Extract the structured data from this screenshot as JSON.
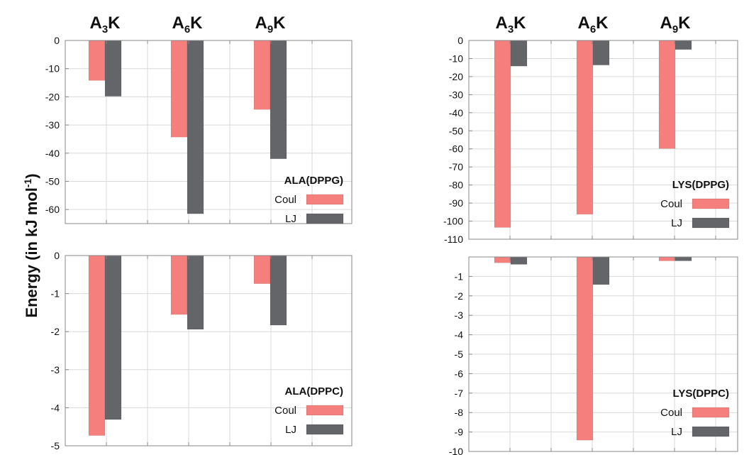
{
  "ylabel": {
    "main": "Energy (in kJ mol",
    "sup": "-1",
    "close": ")"
  },
  "colors": {
    "coul": "#f47f7c",
    "lj": "#646569",
    "grid": "#d9d9d9",
    "frame": "#888888"
  },
  "chart_data": [
    {
      "type": "bar",
      "position": "top-left",
      "categories": [
        "A3K",
        "A6K",
        "A9K"
      ],
      "category_headers": [
        {
          "base": "A",
          "sub": "3",
          "end": "K"
        },
        {
          "base": "A",
          "sub": "6",
          "end": "K"
        },
        {
          "base": "A",
          "sub": "9",
          "end": "K"
        }
      ],
      "legend_title": "ALA(DPPG)",
      "series": [
        {
          "name": "Coul",
          "values": [
            -14.2,
            -34.3,
            -24.5
          ]
        },
        {
          "name": "LJ",
          "values": [
            -19.8,
            -61.5,
            -42.0
          ]
        }
      ],
      "ylim": [
        -65,
        0
      ],
      "yticks": [
        0,
        -10,
        -20,
        -30,
        -40,
        -50,
        -60
      ]
    },
    {
      "type": "bar",
      "position": "bottom-left",
      "categories": [
        "A3K",
        "A6K",
        "A9K"
      ],
      "legend_title": "ALA(DPPC)",
      "series": [
        {
          "name": "Coul",
          "values": [
            -4.73,
            -1.55,
            -0.74
          ]
        },
        {
          "name": "LJ",
          "values": [
            -4.31,
            -1.94,
            -1.83
          ]
        }
      ],
      "ylim": [
        -5,
        0
      ],
      "yticks": [
        0,
        -1,
        -2,
        -3,
        -4,
        -5
      ]
    },
    {
      "type": "bar",
      "position": "top-right",
      "categories": [
        "A3K",
        "A6K",
        "A9K"
      ],
      "category_headers": [
        {
          "base": "A",
          "sub": "3",
          "end": "K"
        },
        {
          "base": "A",
          "sub": "6",
          "end": "K"
        },
        {
          "base": "A",
          "sub": "9",
          "end": "K"
        }
      ],
      "legend_title": "LYS(DPPG)",
      "series": [
        {
          "name": "Coul",
          "values": [
            -103.5,
            -96.2,
            -59.8
          ]
        },
        {
          "name": "LJ",
          "values": [
            -14.2,
            -13.6,
            -5.0
          ]
        }
      ],
      "ylim": [
        -110,
        0
      ],
      "yticks": [
        0,
        -10,
        -20,
        -30,
        -40,
        -50,
        -60,
        -70,
        -80,
        -90,
        -100,
        -110
      ]
    },
    {
      "type": "bar",
      "position": "bottom-right",
      "categories": [
        "A3K",
        "A6K",
        "A9K"
      ],
      "legend_title": "LYS(DPPC)",
      "series": [
        {
          "name": "Coul",
          "values": [
            -0.3,
            -9.42,
            -0.2
          ]
        },
        {
          "name": "LJ",
          "values": [
            -0.38,
            -1.42,
            -0.2
          ]
        }
      ],
      "ylim": [
        -10,
        0
      ],
      "yticks": [
        -1,
        -2,
        -3,
        -4,
        -5,
        -6,
        -7,
        -8,
        -9,
        -10
      ]
    }
  ]
}
